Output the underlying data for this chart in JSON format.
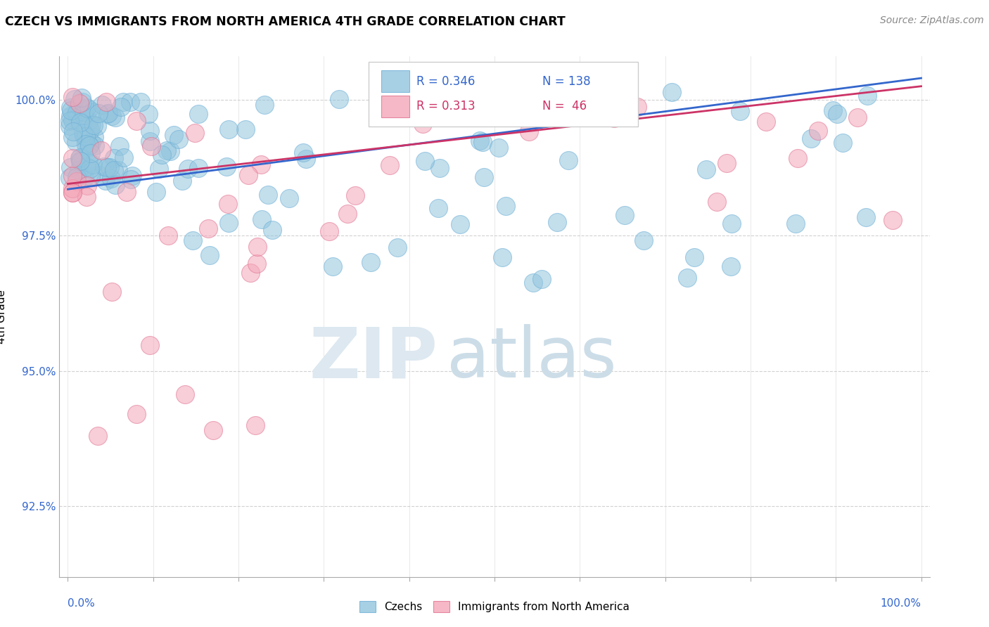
{
  "title": "CZECH VS IMMIGRANTS FROM NORTH AMERICA 4TH GRADE CORRELATION CHART",
  "source": "Source: ZipAtlas.com",
  "ylabel": "4th Grade",
  "ylim": [
    91.2,
    100.8
  ],
  "xlim": [
    -1,
    101
  ],
  "yticks": [
    92.5,
    95.0,
    97.5,
    100.0
  ],
  "ytick_labels": [
    "92.5%",
    "95.0%",
    "97.5%",
    "100.0%"
  ],
  "blue_color": "#92c5de",
  "pink_color": "#f4a6b8",
  "blue_edge_color": "#6baed6",
  "pink_edge_color": "#e07090",
  "blue_line_color": "#3366cc",
  "pink_line_color": "#cc3366",
  "legend_R_blue": "R = 0.346",
  "legend_N_blue": "N = 138",
  "legend_R_pink": "R = 0.313",
  "legend_N_pink": "N =  46",
  "blue_trend_x0": 0,
  "blue_trend_x1": 100,
  "blue_trend_y0": 98.35,
  "blue_trend_y1": 100.4,
  "pink_trend_x0": 0,
  "pink_trend_x1": 100,
  "pink_trend_y0": 98.45,
  "pink_trend_y1": 100.25,
  "background_color": "#ffffff",
  "grid_color": "#cccccc",
  "text_color_blue": "#3366cc",
  "text_color_pink": "#cc3366",
  "watermark_zip_color": "#dde8f0",
  "watermark_atlas_color": "#ccdde8"
}
